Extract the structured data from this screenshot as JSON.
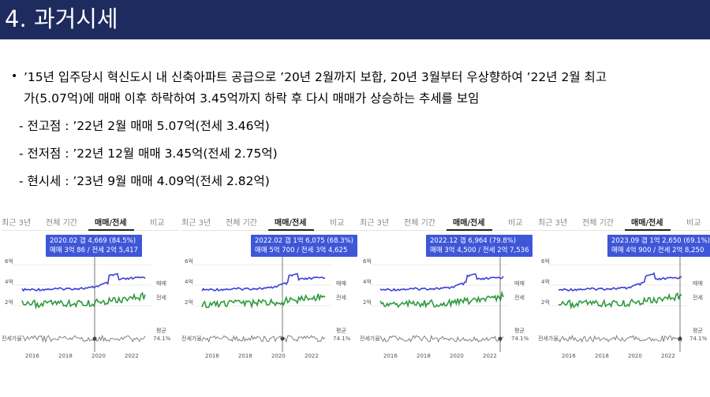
{
  "header": {
    "title": "4. 과거시세"
  },
  "summary": {
    "bullet": "•",
    "line1": "’15년 입주당시 혁신도시 내 신축아파트 공급으로 ’20년 2월까지 보합, 20년 3월부터 우상향하여 ’22년 2월 최고",
    "line2": "가(5.07억)에 매매 이후 하락하여 3.45억까지 하락 후 다시 매매가 상승하는 추세를 보임",
    "peak": "- 전고점 : ’22년 2월 매매 5.07억(전세 3.46억)",
    "low": "- 전저점 : ’22년 12월 매매 3.45억(전세 2.75억)",
    "current": "- 현시세 : ’23년 9월 매매 4.09억(전세 2.82억)"
  },
  "panels": [
    {
      "tabs": [
        "최근 3년",
        "전체 기간",
        "매매/전세",
        "비교"
      ],
      "tooltip_line1": "2020.02 갭 4,669 (84.5%)",
      "tooltip_line2": "매매 3억 86 / 전세 2억 5,417",
      "sale_label": "매매",
      "jeonse_label": "전세",
      "ratio_label": "전세가율",
      "avg_label": "평균",
      "avg_value": "74.1%",
      "years": [
        "2016",
        "2018",
        "2020",
        "2022"
      ],
      "y_ticks": [
        "6억",
        "4억",
        "2억"
      ]
    },
    {
      "tabs": [
        "최근 3년",
        "전체 기간",
        "매매/전세",
        "비교"
      ],
      "tooltip_line1": "2022.02 갭 1억 6,075 (68.3%)",
      "tooltip_line2": "매매 5억 700 / 전세 3억 4,625",
      "sale_label": "매매",
      "jeonse_label": "전세",
      "ratio_label": "전세가율",
      "avg_label": "평균",
      "avg_value": "74.1%",
      "years": [
        "2016",
        "2018",
        "2020",
        "2022"
      ],
      "y_ticks": [
        "6억",
        "4억",
        "2억"
      ]
    },
    {
      "tabs": [
        "최근 3년",
        "전체 기간",
        "매매/전세",
        "비교"
      ],
      "tooltip_line1": "2022.12 갭 6,964 (79.8%)",
      "tooltip_line2": "매매 3억 4,500 / 전세 2억 7,536",
      "sale_label": "매매",
      "jeonse_label": "전세",
      "ratio_label": "전세가율",
      "avg_label": "평균",
      "avg_value": "74.1%",
      "years": [
        "2016",
        "2018",
        "2020",
        "2022"
      ],
      "y_ticks": [
        "6억",
        "4억",
        "2억"
      ]
    },
    {
      "tabs": [
        "최근 3년",
        "전체 기간",
        "매매/전세",
        "비교"
      ],
      "tooltip_line1": "2023.09 갭 1억 2,650 (69.1%)",
      "tooltip_line2": "매매 4억 900 / 전세 2억 8,250",
      "sale_label": "매매",
      "jeonse_label": "전세",
      "ratio_label": "전세가율",
      "avg_label": "평균",
      "avg_value": "74.1%",
      "years": [
        "2016",
        "2018",
        "2020",
        "2022"
      ],
      "y_ticks": [
        "6억",
        "4억",
        "2억"
      ]
    }
  ],
  "colors": {
    "title_bg": "#1e2b5e",
    "sale": "#3b3fd6",
    "jeonse": "#2e9a3e",
    "tooltip": "#3e57d8"
  }
}
